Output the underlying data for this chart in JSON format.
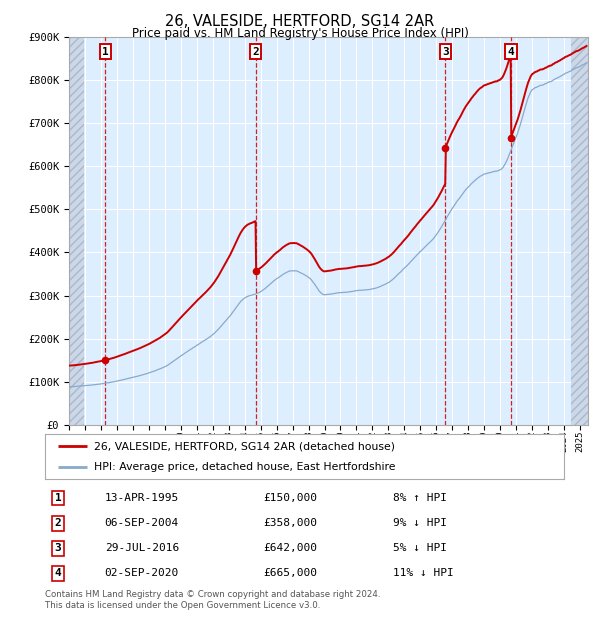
{
  "title": "26, VALESIDE, HERTFORD, SG14 2AR",
  "subtitle": "Price paid vs. HM Land Registry's House Price Index (HPI)",
  "ylim": [
    0,
    900000
  ],
  "yticks": [
    0,
    100000,
    200000,
    300000,
    400000,
    500000,
    600000,
    700000,
    800000,
    900000
  ],
  "xlim_start": 1993.0,
  "xlim_end": 2025.5,
  "sale_dates": [
    1995.28,
    2004.68,
    2016.57,
    2020.67
  ],
  "sale_prices": [
    150000,
    358000,
    642000,
    665000
  ],
  "sale_labels": [
    "1",
    "2",
    "3",
    "4"
  ],
  "sale_color": "#cc0000",
  "hpi_color": "#88aacc",
  "legend_sale_label": "26, VALESIDE, HERTFORD, SG14 2AR (detached house)",
  "legend_hpi_label": "HPI: Average price, detached house, East Hertfordshire",
  "table_rows": [
    [
      "1",
      "13-APR-1995",
      "£150,000",
      "8% ↑ HPI"
    ],
    [
      "2",
      "06-SEP-2004",
      "£358,000",
      "9% ↓ HPI"
    ],
    [
      "3",
      "29-JUL-2016",
      "£642,000",
      "5% ↓ HPI"
    ],
    [
      "4",
      "02-SEP-2020",
      "£665,000",
      "11% ↓ HPI"
    ]
  ],
  "footnote": "Contains HM Land Registry data © Crown copyright and database right 2024.\nThis data is licensed under the Open Government Licence v3.0.",
  "background_color": "#ffffff",
  "plot_bg_color": "#ddeeff",
  "hatch_color": "#ccd8e8",
  "grid_color": "#ffffff",
  "hpi_anchor_years": [
    1993,
    1995,
    1997,
    1998,
    1999,
    2000,
    2001,
    2002,
    2003,
    2004,
    2005,
    2006,
    2007,
    2008,
    2009,
    2010,
    2011,
    2012,
    2013,
    2014,
    2015,
    2016,
    2017,
    2018,
    2019,
    2020,
    2021,
    2022,
    2023,
    2024,
    2025
  ],
  "hpi_anchor_vals": [
    88000,
    95000,
    110000,
    120000,
    135000,
    160000,
    185000,
    210000,
    250000,
    295000,
    310000,
    340000,
    360000,
    345000,
    305000,
    310000,
    315000,
    320000,
    335000,
    370000,
    410000,
    450000,
    510000,
    560000,
    590000,
    600000,
    680000,
    790000,
    810000,
    830000,
    850000
  ]
}
